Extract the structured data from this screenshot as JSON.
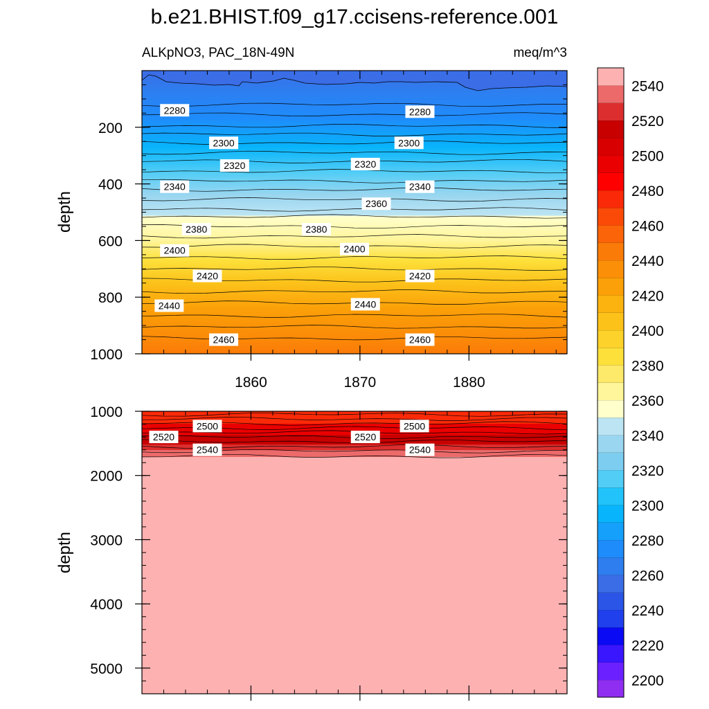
{
  "title": "b.e21.BHIST.f09_g17.ccisens-reference.001",
  "chart_data": [
    {
      "type": "contour",
      "panel": "top",
      "left_string": "ALKpNO3, PAC_18N-49N",
      "right_string": "meq/m^3",
      "xlabel": "",
      "ylabel": "depth",
      "xlim": [
        1850,
        1889
      ],
      "ylim": [
        1000,
        0
      ],
      "xticks": [
        1860,
        1870,
        1880
      ],
      "xticklabels": [
        "1860",
        "1870",
        "1880"
      ],
      "yticks": [
        200,
        400,
        600,
        800,
        1000
      ],
      "yticklabels": [
        "200",
        "400",
        "600",
        "800",
        "1000"
      ],
      "levels": [
        2280,
        2290,
        2300,
        2310,
        2320,
        2330,
        2340,
        2350,
        2360,
        2370,
        2380,
        2390,
        2400,
        2410,
        2420,
        2430,
        2440,
        2450,
        2460,
        2470
      ],
      "contour_depth": [
        120,
        155,
        195,
        225,
        255,
        290,
        320,
        355,
        390,
        420,
        455,
        490,
        515,
        550,
        585,
        620,
        660,
        700,
        740,
        780,
        820,
        865,
        905,
        945
      ],
      "contour_labels": [
        {
          "text": "2280",
          "x": 1853.0,
          "depth": 140
        },
        {
          "text": "2280",
          "x": 1875.5,
          "depth": 145
        },
        {
          "text": "2300",
          "x": 1857.5,
          "depth": 255
        },
        {
          "text": "2300",
          "x": 1874.5,
          "depth": 255
        },
        {
          "text": "2320",
          "x": 1858.5,
          "depth": 335
        },
        {
          "text": "2320",
          "x": 1870.5,
          "depth": 330
        },
        {
          "text": "2340",
          "x": 1853.0,
          "depth": 410
        },
        {
          "text": "2340",
          "x": 1875.5,
          "depth": 410
        },
        {
          "text": "2360",
          "x": 1871.5,
          "depth": 470
        },
        {
          "text": "2380",
          "x": 1855.0,
          "depth": 560
        },
        {
          "text": "2380",
          "x": 1866.0,
          "depth": 560
        },
        {
          "text": "2400",
          "x": 1853.0,
          "depth": 635
        },
        {
          "text": "2400",
          "x": 1869.5,
          "depth": 630
        },
        {
          "text": "2420",
          "x": 1856.0,
          "depth": 725
        },
        {
          "text": "2420",
          "x": 1875.5,
          "depth": 725
        },
        {
          "text": "2440",
          "x": 1852.5,
          "depth": 830
        },
        {
          "text": "2440",
          "x": 1870.5,
          "depth": 825
        },
        {
          "text": "2460",
          "x": 1857.5,
          "depth": 950
        },
        {
          "text": "2460",
          "x": 1875.5,
          "depth": 950
        }
      ]
    },
    {
      "type": "contour",
      "panel": "bottom",
      "xlabel": "",
      "ylabel": "depth",
      "xlim": [
        1850,
        1889
      ],
      "ylim": [
        5400,
        1000
      ],
      "yticks": [
        1000,
        2000,
        3000,
        4000,
        5000
      ],
      "yticklabels": [
        "1000",
        "2000",
        "3000",
        "4000",
        "5000"
      ],
      "contour_depth": [
        1050,
        1120,
        1190,
        1260,
        1330,
        1400,
        1470,
        1550,
        1620,
        1700
      ],
      "contour_labels": [
        {
          "text": "2500",
          "x": 1856.0,
          "depth": 1230
        },
        {
          "text": "2500",
          "x": 1875.0,
          "depth": 1230
        },
        {
          "text": "2520",
          "x": 1852.0,
          "depth": 1400
        },
        {
          "text": "2520",
          "x": 1870.5,
          "depth": 1400
        },
        {
          "text": "2540",
          "x": 1856.0,
          "depth": 1600
        },
        {
          "text": "2540",
          "x": 1875.5,
          "depth": 1600
        }
      ]
    }
  ],
  "colorbar": {
    "labels": [
      "2200",
      "2220",
      "2240",
      "2260",
      "2280",
      "2300",
      "2320",
      "2340",
      "2360",
      "2380",
      "2400",
      "2420",
      "2440",
      "2460",
      "2480",
      "2500",
      "2520",
      "2540"
    ],
    "colors": [
      "#8f2ef0",
      "#6a20ff",
      "#3a16ff",
      "#0a0af5",
      "#2040ee",
      "#2b55e6",
      "#3a6de6",
      "#2e7ef0",
      "#1e8cfb",
      "#15a0fb",
      "#08b4fb",
      "#22c3fb",
      "#52cdf6",
      "#7ccdf0",
      "#9ad6f0",
      "#bce4f3",
      "#ffffcc",
      "#fff59a",
      "#fde96a",
      "#fde03a",
      "#fdd22a",
      "#fcc21a",
      "#fcb310",
      "#fba008",
      "#fb9008",
      "#fb7b08",
      "#fb6408",
      "#fb4a08",
      "#fa2a08",
      "#ff0000",
      "#ea0000",
      "#d80000",
      "#c80000",
      "#dc2e2e",
      "#ec6a6a",
      "#fdb1b1"
    ]
  }
}
